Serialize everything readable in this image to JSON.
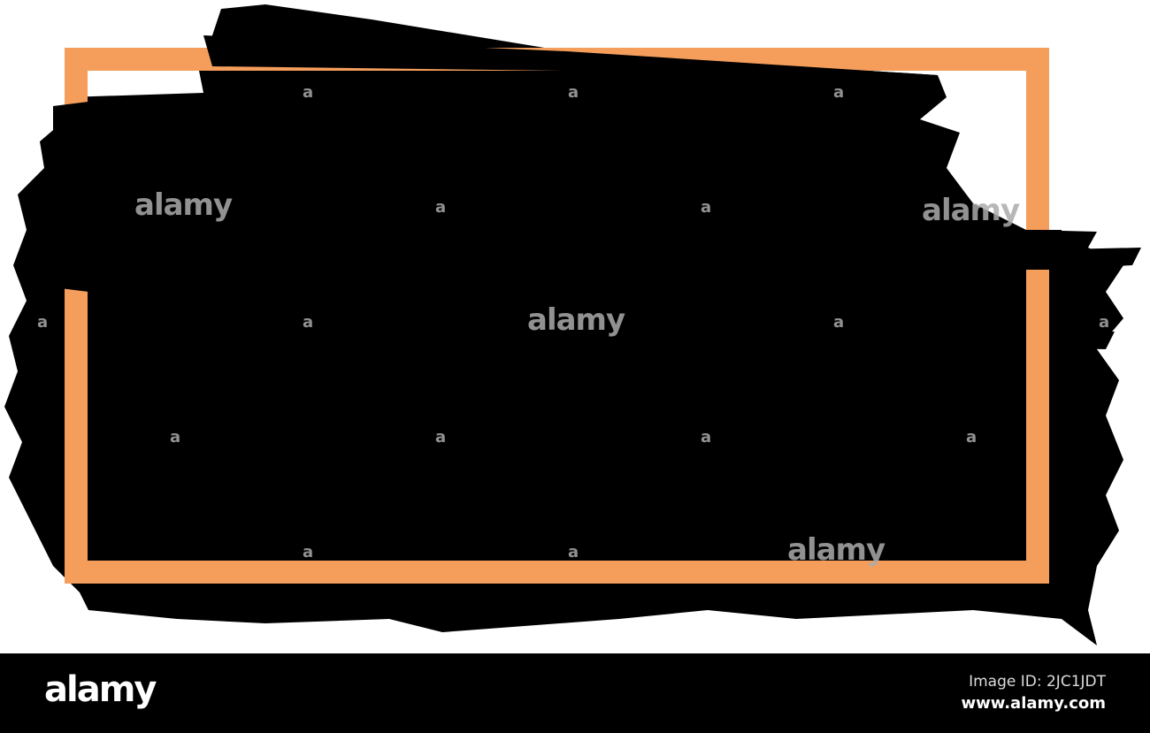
{
  "colors": {
    "frame": "#F59E5C",
    "brush": "#000000",
    "background": "#FFFFFF"
  },
  "watermark": {
    "text": "alamy",
    "small": "a"
  },
  "footer": {
    "logo": "alamy",
    "image_id": "Image ID: 2JC1JDT",
    "url": "www.alamy.com"
  }
}
